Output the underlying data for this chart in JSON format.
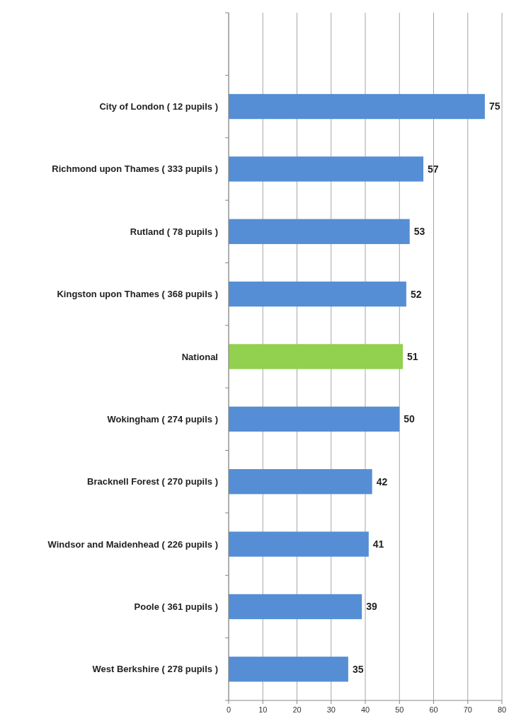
{
  "chart_data": {
    "type": "bar",
    "orientation": "horizontal",
    "categories": [
      null,
      "City of London ( 12 pupils )",
      "Richmond upon Thames ( 333 pupils )",
      "Rutland ( 78 pupils )",
      "Kingston upon Thames ( 368 pupils )",
      "National",
      "Wokingham ( 274 pupils )",
      "Bracknell Forest ( 270 pupils )",
      "Windsor and Maidenhead ( 226 pupils )",
      "Poole ( 361 pupils )",
      "West Berkshire ( 278 pupils )"
    ],
    "values": [
      null,
      75,
      57,
      53,
      52,
      51,
      50,
      42,
      41,
      39,
      35
    ],
    "colors": [
      null,
      "#558ed5",
      "#558ed5",
      "#558ed5",
      "#558ed5",
      "#92d050",
      "#558ed5",
      "#558ed5",
      "#558ed5",
      "#558ed5",
      "#558ed5"
    ],
    "xlim": [
      0,
      80
    ],
    "xticks": [
      0,
      10,
      20,
      30,
      40,
      50,
      60,
      70,
      80
    ],
    "grid": "x",
    "data_labels": true
  }
}
